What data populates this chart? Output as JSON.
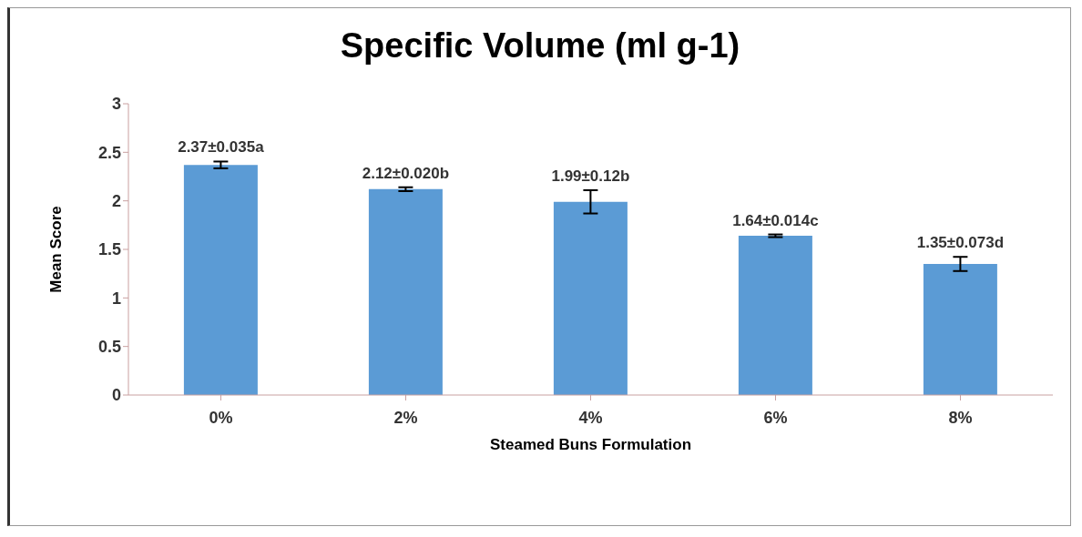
{
  "chart_data": {
    "type": "bar",
    "title": "Specific Volume (ml g-1)",
    "xlabel": "Steamed Buns Formulation",
    "ylabel": "Mean Score",
    "categories": [
      "0%",
      "2%",
      "4%",
      "6%",
      "8%"
    ],
    "values": [
      2.37,
      2.12,
      1.99,
      1.64,
      1.35
    ],
    "errors": [
      0.035,
      0.02,
      0.12,
      0.014,
      0.073
    ],
    "value_labels": [
      "2.37±0.035a",
      "2.12±0.020b",
      "1.99±0.12b",
      "1.64±0.014c",
      "1.35±0.073d"
    ],
    "color": "#5b9bd5",
    "ylim": [
      0,
      3
    ],
    "yticks": [
      0,
      0.5,
      1,
      1.5,
      2,
      2.5,
      3
    ],
    "grid": false,
    "legend": false
  }
}
